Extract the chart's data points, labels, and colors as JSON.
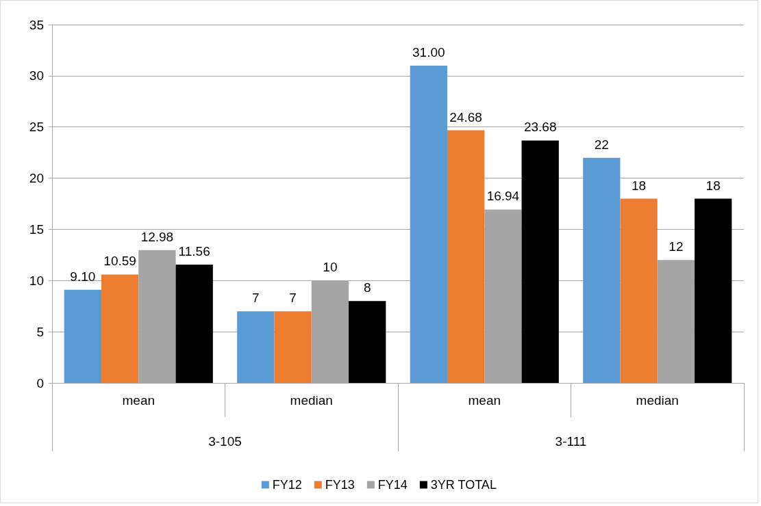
{
  "chart_data": {
    "type": "bar",
    "categories": [
      "mean",
      "median",
      "mean",
      "median"
    ],
    "series": [
      {
        "name": "FY12",
        "color": "#5b9bd5",
        "values": [
          9.1,
          7,
          31,
          22
        ],
        "value_labels": [
          "9.10",
          "7",
          "31.00",
          "22"
        ]
      },
      {
        "name": "FY13",
        "color": "#ed7d31",
        "values": [
          10.59,
          7,
          24.68,
          18
        ],
        "value_labels": [
          "10.59",
          "7",
          "24.68",
          "18"
        ]
      },
      {
        "name": "FY14",
        "color": "#a5a5a5",
        "values": [
          12.98,
          10,
          16.94,
          12
        ],
        "value_labels": [
          "12.98",
          "10",
          "16.94",
          "12"
        ]
      },
      {
        "name": "3YR TOTAL",
        "color": "#000000",
        "values": [
          11.56,
          8,
          23.68,
          18
        ],
        "value_labels": [
          "11.56",
          "8",
          "23.68",
          "18"
        ]
      }
    ],
    "annotations": [
      "3-105",
      "3-111"
    ],
    "ylim": [
      0,
      35
    ],
    "yticks": [
      0,
      5,
      10,
      15,
      20,
      25,
      30,
      35
    ],
    "grid": "y",
    "legend": "bottom"
  }
}
